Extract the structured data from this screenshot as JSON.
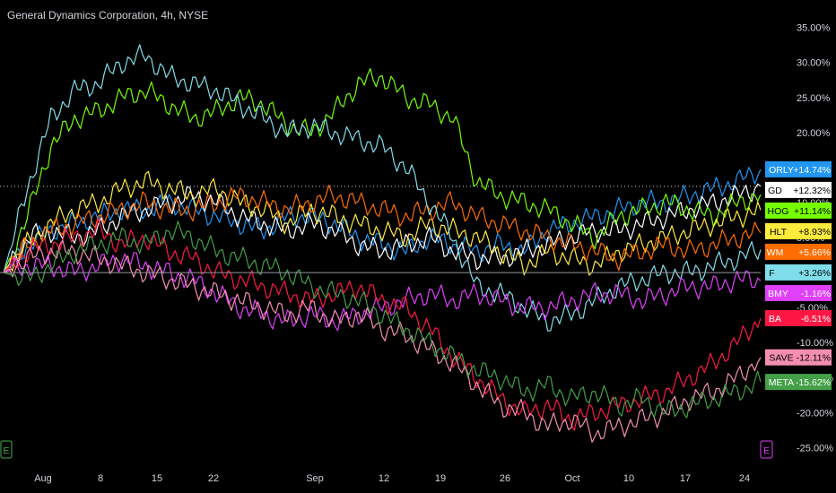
{
  "chart_data": {
    "type": "line",
    "title": "General Dynamics Corporation, 4h, NYSE",
    "y_unit": "percent change",
    "ylim": [
      -27,
      37
    ],
    "y_ticks": [
      "35.00%",
      "30.00%",
      "25.00%",
      "20.00%",
      "15.00%",
      "10.00%",
      "5.00%",
      "0.00%",
      "-5.00%",
      "-10.00%",
      "-15.00%",
      "-20.00%",
      "-25.00%"
    ],
    "x_ticks": [
      "Aug",
      "8",
      "15",
      "22",
      "Sep",
      "12",
      "19",
      "26",
      "Oct",
      "10",
      "17",
      "24"
    ],
    "baseline": 0,
    "reference_value": 12.32,
    "grid": false,
    "legend": "right axis badges",
    "series": [
      {
        "name": "ORLY",
        "color": "#2196f3",
        "last": "+14.74%",
        "values": [
          0,
          4,
          6,
          7,
          8,
          9,
          9,
          10,
          9,
          8,
          7,
          6,
          8,
          8,
          7,
          5,
          4,
          3,
          5,
          4,
          3,
          4,
          3,
          6,
          7,
          8,
          9,
          10,
          10,
          11,
          12,
          13,
          14.74
        ]
      },
      {
        "name": "GD",
        "color": "#ffffff",
        "last": "+12.32%",
        "values": [
          0,
          5,
          6,
          5,
          6,
          8,
          9,
          10,
          11,
          10,
          8,
          7,
          6,
          7,
          6,
          4,
          3,
          4,
          5,
          3,
          2,
          2,
          3,
          4,
          5,
          6,
          6,
          7,
          8,
          9,
          10,
          11,
          12.32
        ]
      },
      {
        "name": "HOG",
        "color": "#76ff03",
        "last": "+11.14%",
        "values": [
          0,
          8,
          18,
          22,
          23,
          25,
          26,
          24,
          22,
          23,
          25,
          24,
          21,
          20,
          23,
          27,
          28,
          25,
          24,
          22,
          13,
          11,
          10,
          9,
          7,
          5,
          8,
          9,
          10,
          9,
          8,
          10,
          11.14
        ]
      },
      {
        "name": "HLT",
        "color": "#ffeb3b",
        "last": "+8.93%",
        "values": [
          0,
          4,
          7,
          9,
          10,
          12,
          13,
          12,
          11,
          12,
          10,
          9,
          7,
          9,
          8,
          7,
          6,
          5,
          7,
          6,
          5,
          3,
          1,
          3,
          2,
          1,
          3,
          4,
          5,
          6,
          7,
          8,
          8.93
        ]
      },
      {
        "name": "WM",
        "color": "#ff6d00",
        "last": "+5.66%",
        "values": [
          0,
          4,
          6,
          7,
          8,
          9,
          10,
          9,
          9,
          10,
          11,
          10,
          9,
          10,
          11,
          10,
          9,
          8,
          9,
          10,
          8,
          7,
          6,
          5,
          4,
          3,
          2,
          3,
          4,
          3,
          4,
          5,
          5.66
        ]
      },
      {
        "name": "F",
        "color": "#80deea",
        "last": "+3.26%",
        "values": [
          0,
          12,
          22,
          26,
          27,
          30,
          31,
          28,
          27,
          26,
          24,
          22,
          20,
          21,
          20,
          19,
          18,
          15,
          10,
          5,
          -2,
          -3,
          -5,
          -7,
          -6,
          -4,
          -2,
          -1,
          0,
          0,
          1,
          2,
          3.26
        ]
      },
      {
        "name": "BMY",
        "color": "#e040fb",
        "last": "-1.16%",
        "values": [
          0,
          1,
          1,
          0,
          1,
          2,
          1,
          0,
          -1,
          -3,
          -5,
          -6,
          -7,
          -6,
          -7,
          -6,
          -5,
          -4,
          -3,
          -4,
          -3,
          -4,
          -5,
          -5,
          -4,
          -3,
          -3,
          -4,
          -3,
          -2,
          -2,
          -1,
          -1.16
        ]
      },
      {
        "name": "BA",
        "color": "#ff1744",
        "last": "-6.51%",
        "values": [
          0,
          3,
          4,
          5,
          6,
          4,
          5,
          3,
          2,
          0,
          -1,
          -2,
          -3,
          -4,
          -3,
          -2,
          -4,
          -5,
          -8,
          -12,
          -15,
          -18,
          -20,
          -19,
          -21,
          -20,
          -19,
          -18,
          -17,
          -15,
          -13,
          -10,
          -6.51
        ]
      },
      {
        "name": "SAVE",
        "color": "#f48fb1",
        "last": "-12.11%",
        "values": [
          0,
          2,
          3,
          3,
          2,
          1,
          0,
          -1,
          -2,
          -3,
          -4,
          -5,
          -6,
          -5,
          -7,
          -6,
          -8,
          -9,
          -11,
          -13,
          -16,
          -19,
          -20,
          -22,
          -21,
          -23,
          -22,
          -21,
          -20,
          -18,
          -17,
          -15,
          -12.11
        ]
      },
      {
        "name": "META",
        "color": "#43a047",
        "last": "-15.62%",
        "values": [
          0,
          -1,
          1,
          3,
          4,
          5,
          4,
          6,
          5,
          3,
          2,
          1,
          0,
          -2,
          -3,
          -4,
          -6,
          -8,
          -10,
          -12,
          -14,
          -15,
          -17,
          -16,
          -18,
          -17,
          -19,
          -18,
          -20,
          -19,
          -18,
          -17,
          -15.62
        ]
      }
    ]
  },
  "axis_badges": {
    "left_icon": "E",
    "right_icon": "E"
  }
}
